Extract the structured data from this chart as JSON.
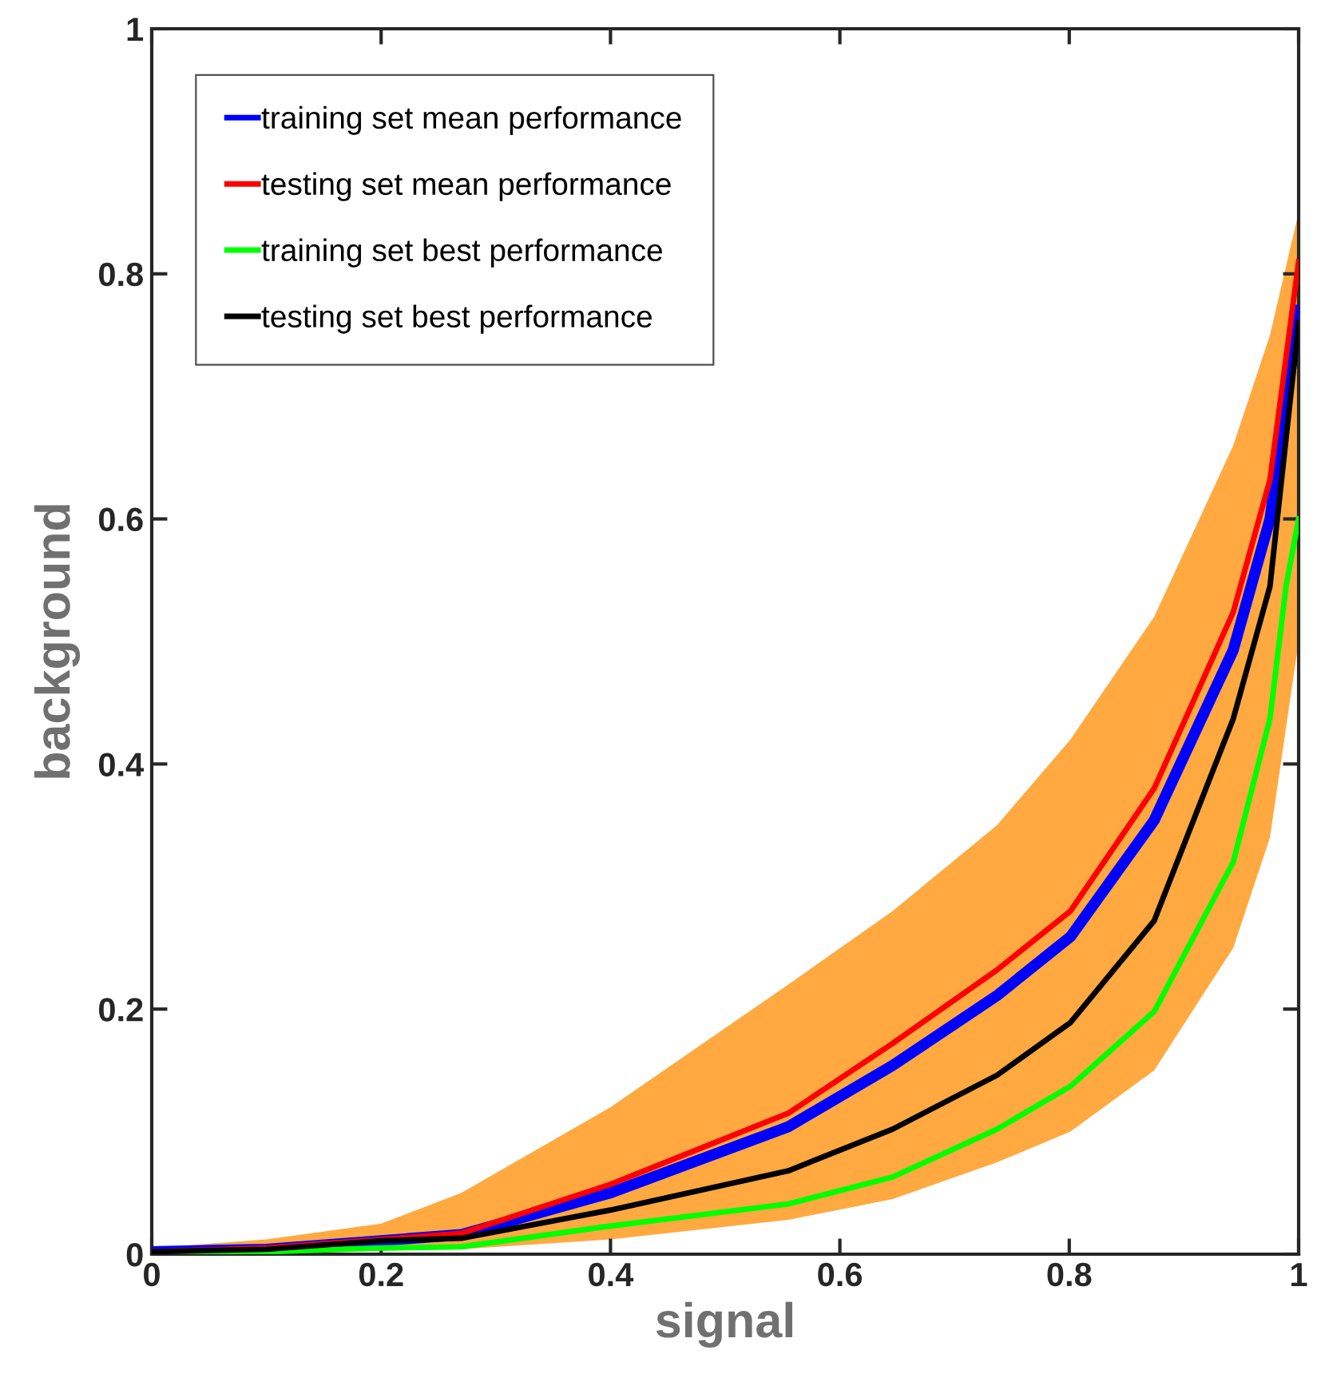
{
  "chart_data": {
    "type": "line",
    "xlabel": "signal",
    "ylabel": "background",
    "xlim": [
      0,
      1
    ],
    "ylim": [
      0,
      1
    ],
    "xticks": [
      0,
      0.2,
      0.4,
      0.6,
      0.8,
      1
    ],
    "yticks": [
      0,
      0.2,
      0.4,
      0.6,
      0.8,
      1
    ],
    "grid": false,
    "legend": "top left",
    "marker": "none",
    "line_style": "solid",
    "series": [
      {
        "name": "training set mean performance",
        "color": "#0000ff",
        "x": [
          0,
          0.1,
          0.2,
          0.27,
          0.4,
          0.555,
          0.646,
          0.737,
          0.801,
          0.874,
          0.943,
          0.975,
          1
        ],
        "values": [
          0.002,
          0.004,
          0.011,
          0.016,
          0.05,
          0.104,
          0.154,
          0.211,
          0.259,
          0.354,
          0.493,
          0.6,
          0.77
        ],
        "lower": [
          0,
          0.001,
          0.003,
          0.004,
          0.012,
          0.028,
          0.045,
          0.075,
          0.1,
          0.15,
          0.25,
          0.34,
          0.5
        ],
        "upper": [
          0.005,
          0.012,
          0.025,
          0.05,
          0.12,
          0.22,
          0.28,
          0.35,
          0.42,
          0.52,
          0.66,
          0.75,
          0.85
        ]
      },
      {
        "name": "testing set mean performance",
        "color": "#ff0000",
        "x": [
          0,
          0.1,
          0.2,
          0.27,
          0.4,
          0.555,
          0.646,
          0.737,
          0.801,
          0.874,
          0.943,
          0.975,
          1
        ],
        "values": [
          0.002,
          0.005,
          0.012,
          0.017,
          0.057,
          0.115,
          0.172,
          0.232,
          0.28,
          0.38,
          0.524,
          0.632,
          0.81
        ]
      },
      {
        "name": "training set best performance",
        "color": "#00ff00",
        "x": [
          0,
          0.1,
          0.2,
          0.27,
          0.4,
          0.555,
          0.646,
          0.737,
          0.801,
          0.874,
          0.943,
          0.975,
          0.989,
          1
        ],
        "values": [
          0.001,
          0.002,
          0.005,
          0.006,
          0.023,
          0.041,
          0.063,
          0.102,
          0.137,
          0.198,
          0.32,
          0.437,
          0.545,
          0.6
        ]
      },
      {
        "name": "testing set best performance",
        "color": "#000000",
        "x": [
          0,
          0.1,
          0.2,
          0.27,
          0.4,
          0.555,
          0.646,
          0.737,
          0.801,
          0.874,
          0.943,
          0.975,
          1
        ],
        "values": [
          0.002,
          0.004,
          0.011,
          0.013,
          0.036,
          0.068,
          0.102,
          0.146,
          0.189,
          0.272,
          0.437,
          0.545,
          0.76
        ]
      }
    ]
  }
}
